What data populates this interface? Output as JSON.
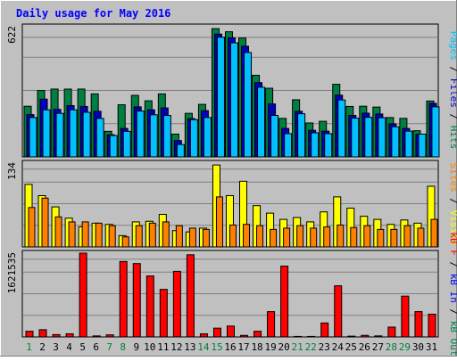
{
  "chart_data": {
    "type": "bar",
    "title": "Daily usage for May 2016",
    "categories": [
      "1",
      "2",
      "3",
      "4",
      "5",
      "6",
      "7",
      "8",
      "9",
      "10",
      "11",
      "12",
      "13",
      "14",
      "15",
      "16",
      "17",
      "18",
      "19",
      "20",
      "21",
      "22",
      "23",
      "24",
      "25",
      "26",
      "27",
      "28",
      "29",
      "30",
      "31"
    ],
    "weekend_days": [
      "1",
      "7",
      "8",
      "14",
      "15",
      "21",
      "22",
      "28",
      "29"
    ],
    "max_labels": {
      "hits": "622",
      "sites": "134",
      "kb": "1621535"
    },
    "colors": {
      "background": "#c0c0c0",
      "border": "#000000",
      "title": "#0000ff",
      "hits": "#008040",
      "files": "#0000c0",
      "pages": "#00c0ff",
      "visits": "#ffff00",
      "sites": "#ff8000",
      "kb_in": "#0000ff",
      "kb_out": "#008040",
      "kb_f": "#ff0000",
      "weekday_label": "#000000",
      "weekend_label": "#008040"
    },
    "axis_labels": {
      "top": [
        {
          "text": "Pages",
          "color": "#00c0ff"
        },
        {
          "text": " / ",
          "color": "#000000"
        },
        {
          "text": "Files",
          "color": "#0000c0"
        },
        {
          "text": " / ",
          "color": "#000000"
        },
        {
          "text": "Hits",
          "color": "#008040"
        }
      ],
      "middle": [
        {
          "text": "Sites",
          "color": "#ff8000"
        },
        {
          "text": " / ",
          "color": "#000000"
        },
        {
          "text": "Visits",
          "color": "#ffff00"
        }
      ],
      "bottom": [
        {
          "text": "kB F",
          "color": "#ff0000"
        },
        {
          "text": " / ",
          "color": "#000000"
        },
        {
          "text": "kB In",
          "color": "#0000ff"
        },
        {
          "text": " / ",
          "color": "#000000"
        },
        {
          "text": "kB Out",
          "color": "#008040"
        }
      ]
    },
    "ylim": {
      "hits": [
        0,
        622
      ],
      "sites": [
        0,
        134
      ],
      "kb": [
        0,
        1621535
      ]
    },
    "series": {
      "hits": [
        242,
        317,
        324,
        324,
        324,
        301,
        122,
        249,
        294,
        268,
        301,
        109,
        208,
        251,
        613,
        598,
        568,
        390,
        328,
        184,
        273,
        162,
        170,
        347,
        241,
        242,
        238,
        188,
        184,
        125,
        267
      ],
      "files": [
        202,
        276,
        227,
        245,
        241,
        218,
        106,
        136,
        239,
        225,
        234,
        78,
        183,
        221,
        587,
        569,
        529,
        355,
        253,
        136,
        218,
        127,
        123,
        295,
        198,
        209,
        205,
        158,
        136,
        108,
        256
      ],
      "pages": [
        188,
        225,
        208,
        225,
        213,
        184,
        102,
        122,
        219,
        201,
        198,
        59,
        178,
        188,
        572,
        545,
        499,
        333,
        198,
        111,
        206,
        115,
        111,
        272,
        185,
        189,
        187,
        144,
        123,
        109,
        239
      ],
      "visits": [
        100,
        82,
        64,
        46,
        32,
        38,
        36,
        18,
        40,
        41,
        52,
        26,
        24,
        30,
        131,
        82,
        105,
        66,
        54,
        44,
        47,
        40,
        56,
        80,
        62,
        49,
        44,
        36,
        43,
        38,
        97
      ],
      "sites": [
        63,
        78,
        48,
        40,
        40,
        38,
        34,
        16,
        34,
        38,
        40,
        34,
        30,
        28,
        80,
        35,
        36,
        34,
        28,
        30,
        34,
        30,
        32,
        35,
        31,
        34,
        28,
        28,
        34,
        30,
        44
      ],
      "kb_f": [
        110000,
        140000,
        45000,
        60000,
        1621535,
        20000,
        40000,
        1460000,
        1420000,
        1180000,
        920000,
        1270000,
        1590000,
        60000,
        170000,
        210000,
        30000,
        110000,
        490000,
        1370000,
        10000,
        10000,
        270000,
        990000,
        15000,
        30000,
        20000,
        190000,
        790000,
        490000,
        440000
      ]
    }
  }
}
